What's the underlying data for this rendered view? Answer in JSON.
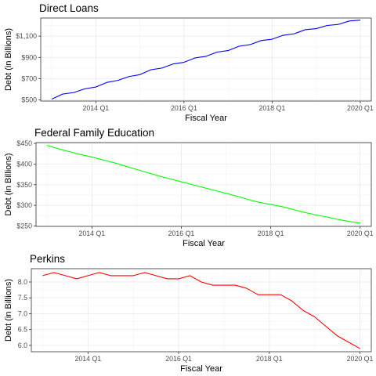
{
  "chart_data": [
    {
      "type": "line",
      "title": "Direct Loans",
      "xlabel": "Fiscal Year",
      "ylabel": "Debt (in Billions)",
      "x_ticks": [
        "2014 Q1",
        "2016 Q1",
        "2018 Q1",
        "2020 Q1"
      ],
      "y_ticks": [
        "$500",
        "$700",
        "$900",
        "$1,100"
      ],
      "y_tick_values": [
        500,
        700,
        900,
        1100
      ],
      "xlim": [
        2012.75,
        2020.25
      ],
      "ylim": [
        490,
        1270
      ],
      "grid": true,
      "color": "#0000ff",
      "series": [
        {
          "x": [
            2013.0,
            2013.25,
            2013.5,
            2013.75,
            2014.0,
            2014.25,
            2014.5,
            2014.75,
            2015.0,
            2015.25,
            2015.5,
            2015.75,
            2016.0,
            2016.25,
            2016.5,
            2016.75,
            2017.0,
            2017.25,
            2017.5,
            2017.75,
            2018.0,
            2018.25,
            2018.5,
            2018.75,
            2019.0,
            2019.25,
            2019.5,
            2019.75,
            2020.0
          ],
          "values": [
            508,
            556,
            570,
            605,
            622,
            665,
            684,
            720,
            738,
            784,
            800,
            838,
            854,
            895,
            910,
            950,
            964,
            1005,
            1020,
            1058,
            1071,
            1108,
            1122,
            1160,
            1170,
            1200,
            1210,
            1242,
            1250
          ]
        }
      ]
    },
    {
      "type": "line",
      "title": "Federal Family Education",
      "xlabel": "Fiscal Year",
      "ylabel": "Debt (in Billions)",
      "x_ticks": [
        "2014 Q1",
        "2016 Q1",
        "2018 Q1",
        "2020 Q1"
      ],
      "y_ticks": [
        "$250",
        "$300",
        "$350",
        "$400",
        "$450"
      ],
      "y_tick_values": [
        250,
        300,
        350,
        400,
        450
      ],
      "xlim": [
        2012.75,
        2020.25
      ],
      "ylim": [
        249,
        452
      ],
      "grid": true,
      "color": "#00ff00",
      "series": [
        {
          "x": [
            2013.0,
            2013.25,
            2013.5,
            2013.75,
            2014.0,
            2014.25,
            2014.5,
            2014.75,
            2015.0,
            2015.25,
            2015.5,
            2015.75,
            2016.0,
            2016.25,
            2016.5,
            2016.75,
            2017.0,
            2017.25,
            2017.5,
            2017.75,
            2018.0,
            2018.25,
            2018.5,
            2018.75,
            2019.0,
            2019.25,
            2019.5,
            2019.75,
            2020.0
          ],
          "values": [
            445,
            437,
            430,
            423,
            417,
            410,
            403,
            395,
            387,
            379,
            371,
            364,
            357,
            350,
            343,
            336,
            329,
            322,
            314,
            307,
            302,
            297,
            290,
            283,
            277,
            272,
            266,
            261,
            257
          ]
        }
      ]
    },
    {
      "type": "line",
      "title": "Perkins",
      "xlabel": "Fiscal Year",
      "ylabel": "Debt (in Billions)",
      "x_ticks": [
        "2014 Q1",
        "2016 Q1",
        "2018 Q1",
        "2020 Q1"
      ],
      "y_ticks": [
        "6.0",
        "6.5",
        "7.0",
        "7.5",
        "8.0"
      ],
      "y_tick_values": [
        6.0,
        6.5,
        7.0,
        7.5,
        8.0
      ],
      "xlim": [
        2012.75,
        2020.25
      ],
      "ylim": [
        5.8,
        8.42
      ],
      "grid": true,
      "color": "#ff0000",
      "series": [
        {
          "x": [
            2013.0,
            2013.25,
            2013.5,
            2013.75,
            2014.0,
            2014.25,
            2014.5,
            2014.75,
            2015.0,
            2015.25,
            2015.5,
            2015.75,
            2016.0,
            2016.25,
            2016.5,
            2016.75,
            2017.0,
            2017.25,
            2017.5,
            2017.75,
            2018.0,
            2018.25,
            2018.5,
            2018.75,
            2019.0,
            2019.25,
            2019.5,
            2019.75,
            2020.0
          ],
          "values": [
            8.2,
            8.3,
            8.2,
            8.1,
            8.2,
            8.3,
            8.2,
            8.2,
            8.2,
            8.3,
            8.2,
            8.1,
            8.1,
            8.2,
            8.0,
            7.9,
            7.9,
            7.9,
            7.8,
            7.6,
            7.6,
            7.6,
            7.4,
            7.1,
            6.9,
            6.6,
            6.3,
            6.1,
            5.9
          ]
        }
      ]
    }
  ]
}
